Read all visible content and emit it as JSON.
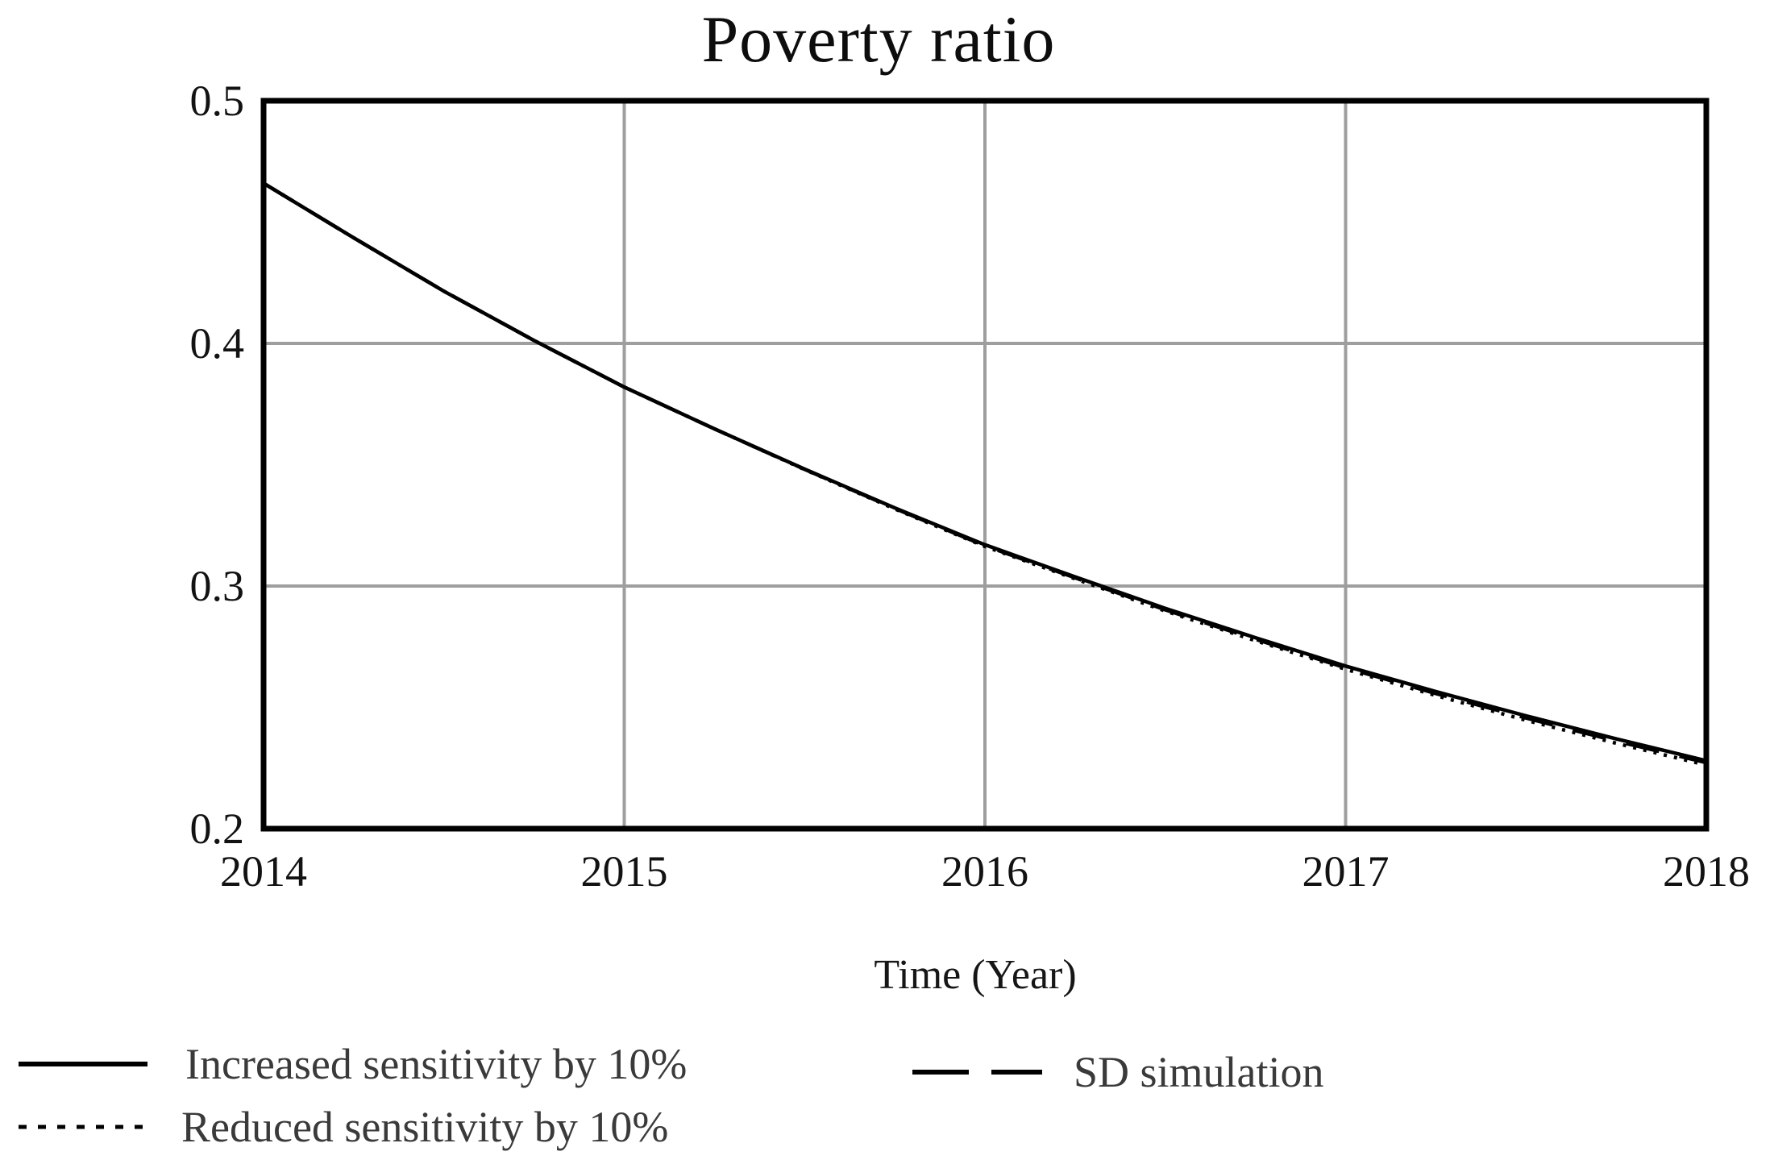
{
  "chart_data": {
    "type": "line",
    "title": "Poverty ratio",
    "xlabel": "Time (Year)",
    "ylabel": "",
    "xlim": [
      2014,
      2018
    ],
    "ylim": [
      0.2,
      0.5
    ],
    "xtick_values": [
      2014,
      2015,
      2016,
      2017,
      2018
    ],
    "xtick_labels": [
      "2014",
      "2015",
      "2016",
      "2017",
      "2018"
    ],
    "ytick_values": [
      0.2,
      0.3,
      0.4,
      0.5
    ],
    "ytick_labels": [
      "0.2",
      "0.3",
      "0.4",
      "0.5"
    ],
    "grid": true,
    "legend_position": "below-left",
    "x": [
      2014,
      2014.25,
      2014.5,
      2014.75,
      2015,
      2015.25,
      2015.5,
      2015.75,
      2016,
      2016.25,
      2016.5,
      2016.75,
      2017,
      2017.25,
      2017.5,
      2017.75,
      2018
    ],
    "series": [
      {
        "name": "Increased sensitivity by 10%",
        "line_style": "solid",
        "color": "#000000",
        "values": [
          0.466,
          0.4435,
          0.4215,
          0.4012,
          0.382,
          0.3648,
          0.3482,
          0.3322,
          0.317,
          0.3038,
          0.2908,
          0.2787,
          0.267,
          0.2565,
          0.2465,
          0.237,
          0.228
        ]
      },
      {
        "name": "Reduced sensitivity by 10%",
        "line_style": "dotted",
        "color": "#000000",
        "values": [
          0.466,
          0.4435,
          0.4215,
          0.4012,
          0.382,
          0.3648,
          0.348,
          0.3318,
          0.3163,
          0.303,
          0.2897,
          0.2775,
          0.2657,
          0.2549,
          0.2447,
          0.2352,
          0.2262
        ]
      },
      {
        "name": "SD simulation",
        "line_style": "dashed",
        "color": "#000000",
        "values": [
          0.466,
          0.4435,
          0.4215,
          0.4012,
          0.382,
          0.3648,
          0.3481,
          0.332,
          0.3166,
          0.3034,
          0.2902,
          0.2781,
          0.2663,
          0.2557,
          0.2456,
          0.2361,
          0.2272
        ]
      }
    ]
  },
  "legend": {
    "items": [
      {
        "label": "Increased sensitivity by 10%",
        "style": "solid"
      },
      {
        "label": "SD simulation",
        "style": "dashed"
      },
      {
        "label": "Reduced sensitivity by 10%",
        "style": "dotted"
      }
    ]
  },
  "colors": {
    "grid": "#9e9e9e",
    "frame": "#000000",
    "curve": "#000000",
    "tick_text": "#121212",
    "legend_text": "#3a3a3a"
  }
}
